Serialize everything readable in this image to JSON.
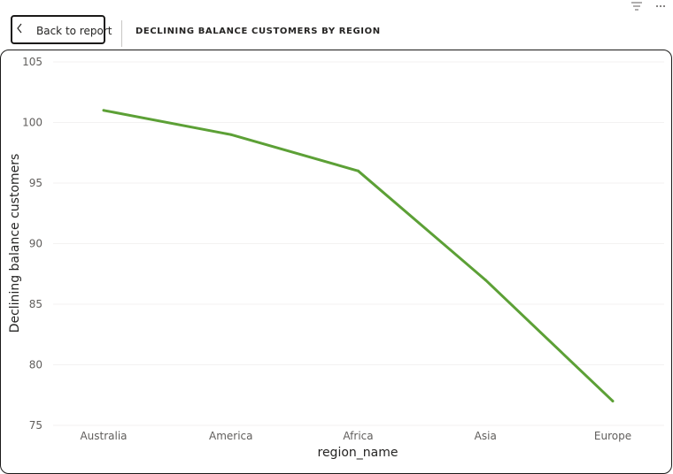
{
  "header": {
    "back_button_label": "Back to report",
    "back_icon": "chevron-left-icon",
    "title": "DECLINING BALANCE CUSTOMERS BY REGION",
    "filter_icon": "filter-icon",
    "more_icon": "more-options-icon"
  },
  "colors": {
    "series": "#5ca036",
    "frame_border": "#1b1a19"
  },
  "chart_data": {
    "type": "line",
    "title": "DECLINING BALANCE CUSTOMERS BY REGION",
    "categories": [
      "Australia",
      "America",
      "Africa",
      "Asia",
      "Europe"
    ],
    "series": [
      {
        "values": [
          101,
          99,
          96,
          87,
          77
        ]
      }
    ],
    "xlabel": "region_name",
    "ylabel": "Declining balance customers",
    "ylim": [
      75,
      105
    ],
    "yticks": [
      75,
      80,
      85,
      90,
      95,
      100,
      105
    ],
    "grid": true,
    "legend": "none"
  }
}
